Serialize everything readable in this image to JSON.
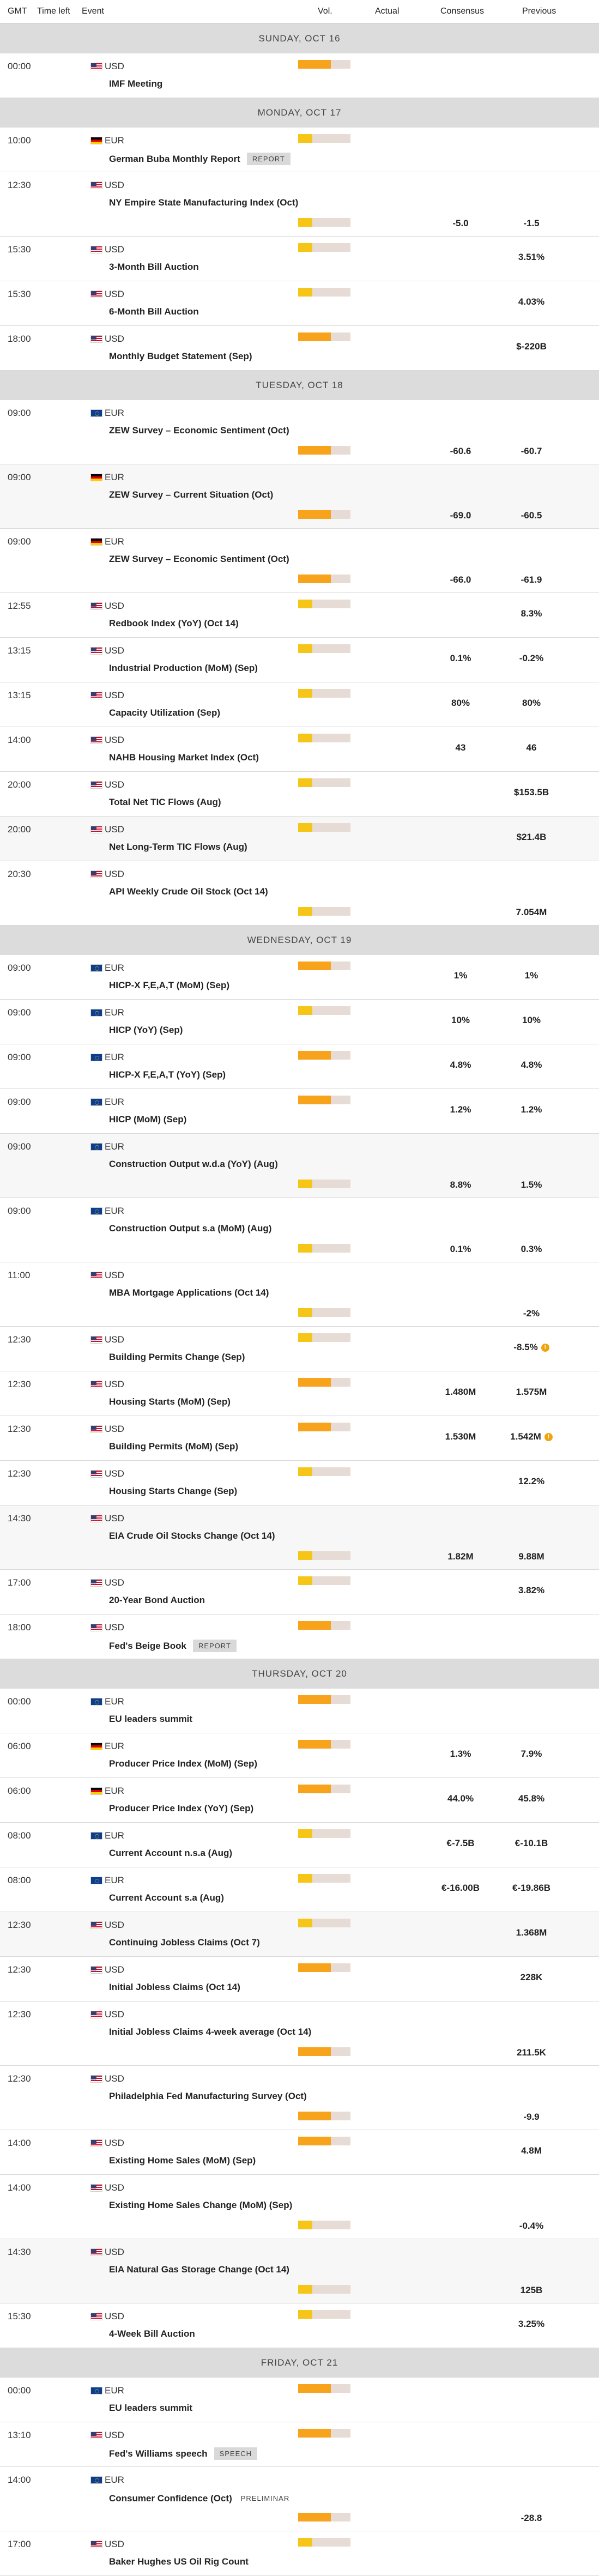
{
  "columns": {
    "gmt": "GMT",
    "time_left": "Time left",
    "event": "Event",
    "vol": "Vol.",
    "actual": "Actual",
    "consensus": "Consensus",
    "previous": "Previous"
  },
  "days": [
    {
      "label": "SUNDAY, OCT 16",
      "events": [
        {
          "time": "00:00",
          "currency": "USD",
          "flag": "us",
          "name": "IMF Meeting",
          "vol": "high",
          "consensus": "",
          "previous": "",
          "multiline": false,
          "alt": false
        }
      ]
    },
    {
      "label": "MONDAY, OCT 17",
      "events": [
        {
          "time": "10:00",
          "currency": "EUR",
          "flag": "de",
          "name": "German Buba Monthly Report",
          "tag": "REPORT",
          "vol": "low",
          "consensus": "",
          "previous": "",
          "multiline": false,
          "alt": false
        },
        {
          "time": "12:30",
          "currency": "USD",
          "flag": "us",
          "name": "NY Empire State Manufacturing Index (Oct)",
          "vol": "low",
          "consensus": "-5.0",
          "previous": "-1.5",
          "multiline": true,
          "alt": false
        },
        {
          "time": "15:30",
          "currency": "USD",
          "flag": "us",
          "name": "3-Month Bill Auction",
          "vol": "low",
          "consensus": "",
          "previous": "3.51%",
          "multiline": false,
          "alt": false
        },
        {
          "time": "15:30",
          "currency": "USD",
          "flag": "us",
          "name": "6-Month Bill Auction",
          "vol": "low",
          "consensus": "",
          "previous": "4.03%",
          "multiline": false,
          "alt": false
        },
        {
          "time": "18:00",
          "currency": "USD",
          "flag": "us",
          "name": "Monthly Budget Statement (Sep)",
          "vol": "high",
          "consensus": "",
          "previous": "$-220B",
          "multiline": false,
          "alt": false
        }
      ]
    },
    {
      "label": "TUESDAY, OCT 18",
      "events": [
        {
          "time": "09:00",
          "currency": "EUR",
          "flag": "eu",
          "name": "ZEW Survey – Economic Sentiment (Oct)",
          "vol": "high",
          "consensus": "-60.6",
          "previous": "-60.7",
          "multiline": true,
          "alt": false
        },
        {
          "time": "09:00",
          "currency": "EUR",
          "flag": "de",
          "name": "ZEW Survey – Current Situation (Oct)",
          "vol": "high",
          "consensus": "-69.0",
          "previous": "-60.5",
          "multiline": true,
          "alt": true
        },
        {
          "time": "09:00",
          "currency": "EUR",
          "flag": "de",
          "name": "ZEW Survey – Economic Sentiment (Oct)",
          "vol": "high",
          "consensus": "-66.0",
          "previous": "-61.9",
          "multiline": true,
          "alt": false
        },
        {
          "time": "12:55",
          "currency": "USD",
          "flag": "us",
          "name": "Redbook Index (YoY) (Oct 14)",
          "vol": "low",
          "consensus": "",
          "previous": "8.3%",
          "multiline": false,
          "alt": false
        },
        {
          "time": "13:15",
          "currency": "USD",
          "flag": "us",
          "name": "Industrial Production (MoM) (Sep)",
          "vol": "low",
          "consensus": "0.1%",
          "previous": "-0.2%",
          "multiline": false,
          "alt": false
        },
        {
          "time": "13:15",
          "currency": "USD",
          "flag": "us",
          "name": "Capacity Utilization (Sep)",
          "vol": "low",
          "consensus": "80%",
          "previous": "80%",
          "multiline": false,
          "alt": false
        },
        {
          "time": "14:00",
          "currency": "USD",
          "flag": "us",
          "name": "NAHB Housing Market Index (Oct)",
          "vol": "low",
          "consensus": "43",
          "previous": "46",
          "multiline": false,
          "alt": false
        },
        {
          "time": "20:00",
          "currency": "USD",
          "flag": "us",
          "name": "Total Net TIC Flows (Aug)",
          "vol": "low",
          "consensus": "",
          "previous": "$153.5B",
          "multiline": false,
          "alt": false
        },
        {
          "time": "20:00",
          "currency": "USD",
          "flag": "us",
          "name": "Net Long-Term TIC Flows (Aug)",
          "vol": "low",
          "consensus": "",
          "previous": "$21.4B",
          "multiline": false,
          "alt": true
        },
        {
          "time": "20:30",
          "currency": "USD",
          "flag": "us",
          "name": "API Weekly Crude Oil Stock (Oct 14)",
          "vol": "low",
          "consensus": "",
          "previous": "7.054M",
          "multiline": true,
          "alt": false
        }
      ]
    },
    {
      "label": "WEDNESDAY, OCT 19",
      "events": [
        {
          "time": "09:00",
          "currency": "EUR",
          "flag": "eu",
          "name": "HICP-X F,E,A,T (MoM) (Sep)",
          "vol": "high",
          "consensus": "1%",
          "previous": "1%",
          "multiline": false,
          "alt": false
        },
        {
          "time": "09:00",
          "currency": "EUR",
          "flag": "eu",
          "name": "HICP (YoY) (Sep)",
          "vol": "low",
          "consensus": "10%",
          "previous": "10%",
          "multiline": false,
          "alt": false
        },
        {
          "time": "09:00",
          "currency": "EUR",
          "flag": "eu",
          "name": "HICP-X F,E,A,T (YoY) (Sep)",
          "vol": "high",
          "consensus": "4.8%",
          "previous": "4.8%",
          "multiline": false,
          "alt": false
        },
        {
          "time": "09:00",
          "currency": "EUR",
          "flag": "eu",
          "name": "HICP (MoM) (Sep)",
          "vol": "high",
          "consensus": "1.2%",
          "previous": "1.2%",
          "multiline": false,
          "alt": false
        },
        {
          "time": "09:00",
          "currency": "EUR",
          "flag": "eu",
          "name": "Construction Output w.d.a (YoY) (Aug)",
          "vol": "low",
          "consensus": "8.8%",
          "previous": "1.5%",
          "multiline": true,
          "alt": true
        },
        {
          "time": "09:00",
          "currency": "EUR",
          "flag": "eu",
          "name": "Construction Output s.a (MoM) (Aug)",
          "vol": "low",
          "consensus": "0.1%",
          "previous": "0.3%",
          "multiline": true,
          "alt": false
        },
        {
          "time": "11:00",
          "currency": "USD",
          "flag": "us",
          "name": "MBA Mortgage Applications (Oct 14)",
          "vol": "low",
          "consensus": "",
          "previous": "-2%",
          "multiline": true,
          "alt": false
        },
        {
          "time": "12:30",
          "currency": "USD",
          "flag": "us",
          "name": "Building Permits Change (Sep)",
          "vol": "low",
          "consensus": "",
          "previous": "-8.5%",
          "revised": true,
          "multiline": false,
          "alt": false
        },
        {
          "time": "12:30",
          "currency": "USD",
          "flag": "us",
          "name": "Housing Starts (MoM) (Sep)",
          "vol": "high",
          "consensus": "1.480M",
          "previous": "1.575M",
          "multiline": false,
          "alt": false
        },
        {
          "time": "12:30",
          "currency": "USD",
          "flag": "us",
          "name": "Building Permits (MoM) (Sep)",
          "vol": "high",
          "consensus": "1.530M",
          "previous": "1.542M",
          "revised": true,
          "multiline": false,
          "alt": false
        },
        {
          "time": "12:30",
          "currency": "USD",
          "flag": "us",
          "name": "Housing Starts Change (Sep)",
          "vol": "low",
          "consensus": "",
          "previous": "12.2%",
          "multiline": false,
          "alt": false
        },
        {
          "time": "14:30",
          "currency": "USD",
          "flag": "us",
          "name": "EIA Crude Oil Stocks Change (Oct 14)",
          "vol": "low",
          "consensus": "1.82M",
          "previous": "9.88M",
          "multiline": true,
          "alt": true
        },
        {
          "time": "17:00",
          "currency": "USD",
          "flag": "us",
          "name": "20-Year Bond Auction",
          "vol": "low",
          "consensus": "",
          "previous": "3.82%",
          "multiline": false,
          "alt": false
        },
        {
          "time": "18:00",
          "currency": "USD",
          "flag": "us",
          "name": "Fed's Beige Book",
          "tag": "REPORT",
          "vol": "high",
          "consensus": "",
          "previous": "",
          "multiline": false,
          "alt": false
        }
      ]
    },
    {
      "label": "THURSDAY, OCT 20",
      "events": [
        {
          "time": "00:00",
          "currency": "EUR",
          "flag": "eu",
          "name": "EU leaders summit",
          "vol": "high",
          "consensus": "",
          "previous": "",
          "multiline": false,
          "alt": false
        },
        {
          "time": "06:00",
          "currency": "EUR",
          "flag": "de",
          "name": "Producer Price Index (MoM) (Sep)",
          "vol": "high",
          "consensus": "1.3%",
          "previous": "7.9%",
          "multiline": false,
          "alt": false
        },
        {
          "time": "06:00",
          "currency": "EUR",
          "flag": "de",
          "name": "Producer Price Index (YoY) (Sep)",
          "vol": "high",
          "consensus": "44.0%",
          "previous": "45.8%",
          "multiline": false,
          "alt": false
        },
        {
          "time": "08:00",
          "currency": "EUR",
          "flag": "eu",
          "name": "Current Account n.s.a (Aug)",
          "vol": "low",
          "consensus": "€-7.5B",
          "previous": "€-10.1B",
          "multiline": false,
          "alt": false
        },
        {
          "time": "08:00",
          "currency": "EUR",
          "flag": "eu",
          "name": "Current Account s.a (Aug)",
          "vol": "low",
          "consensus": "€-16.00B",
          "previous": "€-19.86B",
          "multiline": false,
          "alt": false
        },
        {
          "time": "12:30",
          "currency": "USD",
          "flag": "us",
          "name": "Continuing Jobless Claims (Oct 7)",
          "vol": "low",
          "consensus": "",
          "previous": "1.368M",
          "multiline": false,
          "alt": true
        },
        {
          "time": "12:30",
          "currency": "USD",
          "flag": "us",
          "name": "Initial Jobless Claims (Oct 14)",
          "vol": "high",
          "consensus": "",
          "previous": "228K",
          "multiline": false,
          "alt": false
        },
        {
          "time": "12:30",
          "currency": "USD",
          "flag": "us",
          "name": "Initial Jobless Claims 4-week average (Oct 14)",
          "vol": "high",
          "consensus": "",
          "previous": "211.5K",
          "multiline": true,
          "alt": false
        },
        {
          "time": "12:30",
          "currency": "USD",
          "flag": "us",
          "name": "Philadelphia Fed Manufacturing Survey (Oct)",
          "vol": "high",
          "consensus": "",
          "previous": "-9.9",
          "multiline": true,
          "alt": false
        },
        {
          "time": "14:00",
          "currency": "USD",
          "flag": "us",
          "name": "Existing Home Sales (MoM) (Sep)",
          "vol": "high",
          "consensus": "",
          "previous": "4.8M",
          "multiline": false,
          "alt": false
        },
        {
          "time": "14:00",
          "currency": "USD",
          "flag": "us",
          "name": "Existing Home Sales Change (MoM) (Sep)",
          "vol": "low",
          "consensus": "",
          "previous": "-0.4%",
          "multiline": true,
          "alt": false
        },
        {
          "time": "14:30",
          "currency": "USD",
          "flag": "us",
          "name": "EIA Natural Gas Storage Change (Oct 14)",
          "vol": "low",
          "consensus": "",
          "previous": "125B",
          "multiline": true,
          "alt": true
        },
        {
          "time": "15:30",
          "currency": "USD",
          "flag": "us",
          "name": "4-Week Bill Auction",
          "vol": "low",
          "consensus": "",
          "previous": "3.25%",
          "multiline": false,
          "alt": false
        }
      ]
    },
    {
      "label": "FRIDAY, OCT 21",
      "events": [
        {
          "time": "00:00",
          "currency": "EUR",
          "flag": "eu",
          "name": "EU leaders summit",
          "vol": "high",
          "consensus": "",
          "previous": "",
          "multiline": false,
          "alt": false
        },
        {
          "time": "13:10",
          "currency": "USD",
          "flag": "us",
          "name": "Fed's Williams speech",
          "tag": "SPEECH",
          "vol": "high",
          "consensus": "",
          "previous": "",
          "multiline": false,
          "alt": false
        },
        {
          "time": "14:00",
          "currency": "EUR",
          "flag": "eu",
          "name": "Consumer Confidence (Oct)",
          "tag": "PRELIMINAR",
          "tag_plain": true,
          "vol": "high",
          "consensus": "",
          "previous": "-28.8",
          "multiline": true,
          "alt": false
        },
        {
          "time": "17:00",
          "currency": "USD",
          "flag": "us",
          "name": "Baker Hughes US Oil Rig Count",
          "vol": "low",
          "consensus": "",
          "previous": "",
          "multiline": false,
          "alt": false
        }
      ]
    }
  ],
  "icons": {
    "revised": "!"
  }
}
